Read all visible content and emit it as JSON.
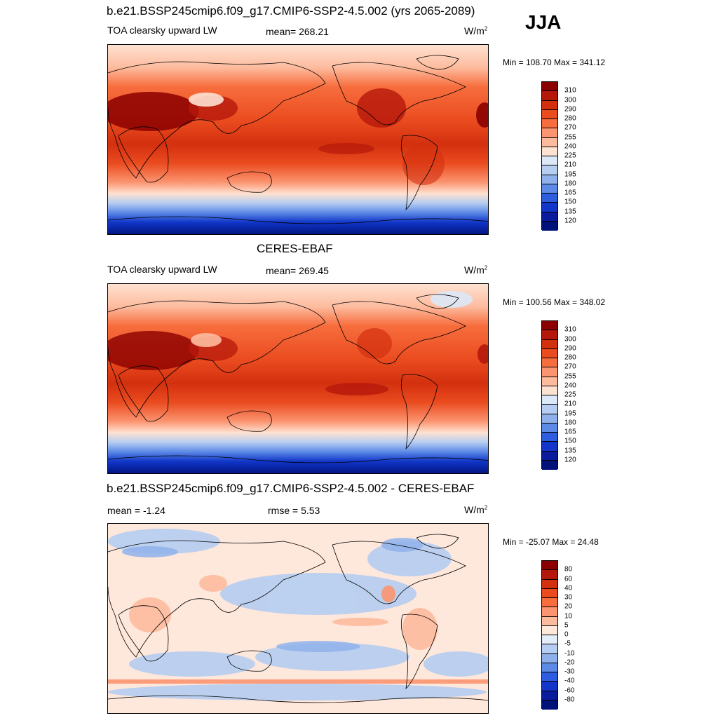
{
  "header": {
    "title": "b.e21.BSSP245cmip6.f09_g17.CMIP6-SSP2-4.5.002 (yrs 2065-2089)",
    "season": "JJA"
  },
  "panels": [
    {
      "id": "model",
      "variable": "TOA clearsky upward LW",
      "stat1": "mean= 268.21",
      "stat2": "",
      "units": "W/m",
      "units_sup": "2",
      "minmax": "Min = 108.70 Max = 341.12",
      "map_description": "Global lat-lon map of clear-sky OLR, model climatology"
    },
    {
      "id": "obs",
      "title": "CERES-EBAF",
      "variable": "TOA clearsky upward LW",
      "stat1": "mean= 269.45",
      "stat2": "",
      "units": "W/m",
      "units_sup": "2",
      "minmax": "Min = 100.56 Max = 348.02",
      "map_description": "Global lat-lon map of clear-sky OLR, CERES-EBAF observations"
    },
    {
      "id": "diff",
      "title": "b.e21.BSSP245cmip6.f09_g17.CMIP6-SSP2-4.5.002 - CERES-EBAF",
      "variable": "",
      "stat1": "mean =  -1.24",
      "stat2": "rmse =   5.53",
      "units": "W/m",
      "units_sup": "2",
      "minmax": "Min = -25.07 Max =  24.48",
      "map_description": "Global lat-lon map of difference (model minus observations)"
    }
  ],
  "colorbars": {
    "abs_levels": [
      "310",
      "300",
      "290",
      "280",
      "270",
      "255",
      "240",
      "225",
      "210",
      "195",
      "180",
      "165",
      "150",
      "135",
      "120"
    ],
    "abs_colors": [
      "#8b0000",
      "#b5180b",
      "#d3300f",
      "#ea4b1f",
      "#f76d3d",
      "#fb9470",
      "#fdbb9e",
      "#fee2d1",
      "#dbe8f7",
      "#b5cdf1",
      "#8fb1eb",
      "#5d8ae6",
      "#2e5de0",
      "#1136c9",
      "#0a1c9e",
      "#00117a"
    ],
    "diff_levels": [
      "80",
      "60",
      "40",
      "30",
      "20",
      "10",
      "5",
      "0",
      "-5",
      "-10",
      "-20",
      "-30",
      "-40",
      "-60",
      "-80"
    ],
    "diff_colors": [
      "#8b0000",
      "#b5180b",
      "#d3300f",
      "#ea4b1f",
      "#f76d3d",
      "#fb9470",
      "#fdbb9e",
      "#fee7db",
      "#e3ecf9",
      "#b5cdf1",
      "#8fb1eb",
      "#5d8ae6",
      "#2e5de0",
      "#1136c9",
      "#0a1c9e",
      "#00117a"
    ]
  }
}
